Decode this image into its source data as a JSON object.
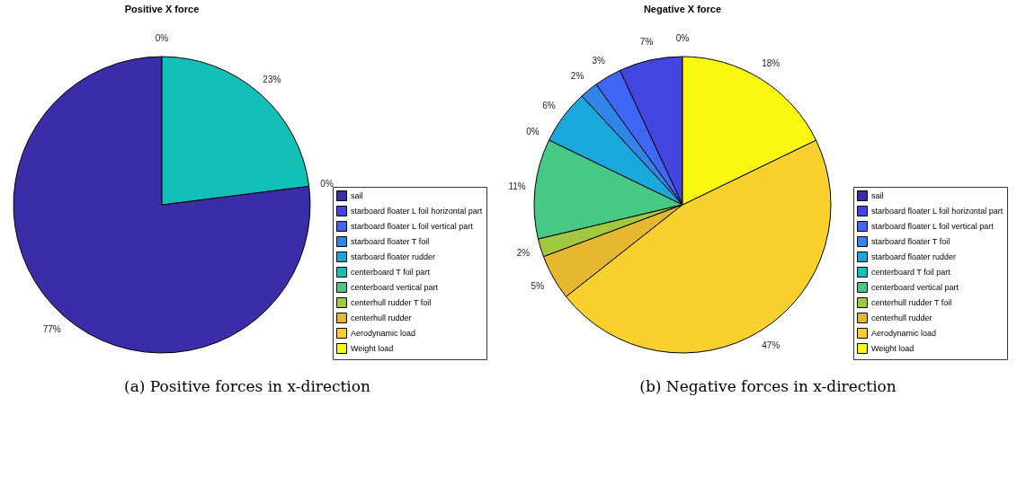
{
  "chart_data": [
    {
      "type": "pie",
      "title": "Positive X force",
      "categories": [
        "sail",
        "starboard floater L foil horizontal part",
        "starboard floater L foil vertical part",
        "starboard floater T foil",
        "starboard floater rudder",
        "centerboard T foil part",
        "centerboard vertical part",
        "centerhull rudder T foil",
        "centerhull rudder",
        "Aerodynamic load",
        "Weight load"
      ],
      "values": [
        77,
        0,
        0,
        0,
        0,
        23,
        0,
        0,
        0,
        0,
        0
      ],
      "value_labels": [
        "77%",
        null,
        null,
        null,
        "0%",
        "23%",
        null,
        null,
        null,
        null,
        "0%"
      ],
      "colors": [
        "#3b2ca8",
        "#4444e0",
        "#4066f5",
        "#2f86e8",
        "#1aa8dc",
        "#14bfb8",
        "#47c985",
        "#a2c840",
        "#e6b830",
        "#f8d12e",
        "#f8f810"
      ],
      "legend": "bottom right",
      "annotations": [
        "(a) Positive forces in x-direction"
      ]
    },
    {
      "type": "pie",
      "title": "Negative X force",
      "categories": [
        "sail",
        "starboard floater L foil horizontal part",
        "starboard floater L foil vertical part",
        "starboard floater T foil",
        "starboard floater rudder",
        "centerboard T foil part",
        "centerboard vertical part",
        "centerhull rudder T foil",
        "centerhull rudder",
        "Aerodynamic load",
        "Weight load"
      ],
      "values": [
        0,
        7,
        3,
        2,
        6,
        0,
        11,
        2,
        5,
        47,
        18
      ],
      "value_labels": [
        "0%",
        "7%",
        "3%",
        "2%",
        "6%",
        "0%",
        "11%",
        "2%",
        "5%",
        "47%",
        "18%"
      ],
      "colors": [
        "#3b2ca8",
        "#4444e0",
        "#4066f5",
        "#2f86e8",
        "#1aa8dc",
        "#14bfb8",
        "#47c985",
        "#a2c840",
        "#e6b830",
        "#f8d12e",
        "#f8f810"
      ],
      "legend": "bottom right",
      "annotations": [
        "(b) Negative forces in x-direction"
      ]
    }
  ]
}
